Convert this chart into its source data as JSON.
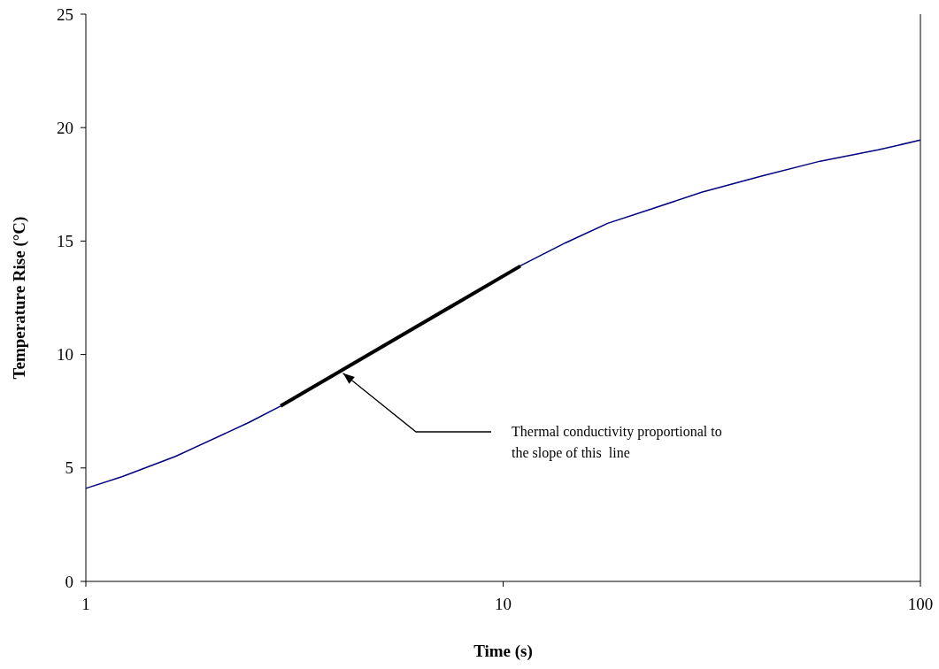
{
  "chart_data": {
    "type": "line",
    "xlabel": "Time (s)",
    "ylabel": "Temperature Rise (°C)",
    "log": "x",
    "xlim": [
      1,
      100
    ],
    "xticks": [
      1,
      10,
      100
    ],
    "ylim": [
      0,
      25
    ],
    "yticks": [
      0,
      5,
      10,
      15,
      20,
      25
    ],
    "grid": false,
    "series": [
      {
        "color": "#000080",
        "x": [
          1,
          1.22,
          1.64,
          2.45,
          2.93,
          5,
          8,
          11.1,
          14.1,
          17.8,
          22.3,
          29.9,
          41.4,
          57.5,
          79.3,
          100
        ],
        "values": [
          4.1,
          4.61,
          5.51,
          6.99,
          7.73,
          10.2,
          12.4,
          13.95,
          14.92,
          15.78,
          16.37,
          17.15,
          17.85,
          18.52,
          19.02,
          19.45
        ]
      },
      {
        "type": "line",
        "color": "#000000",
        "x": [
          2.93,
          11
        ],
        "values": [
          7.73,
          13.9
        ]
      }
    ],
    "annotations": [
      "Thermal conductivity proportional to the slope of this  line"
    ]
  }
}
